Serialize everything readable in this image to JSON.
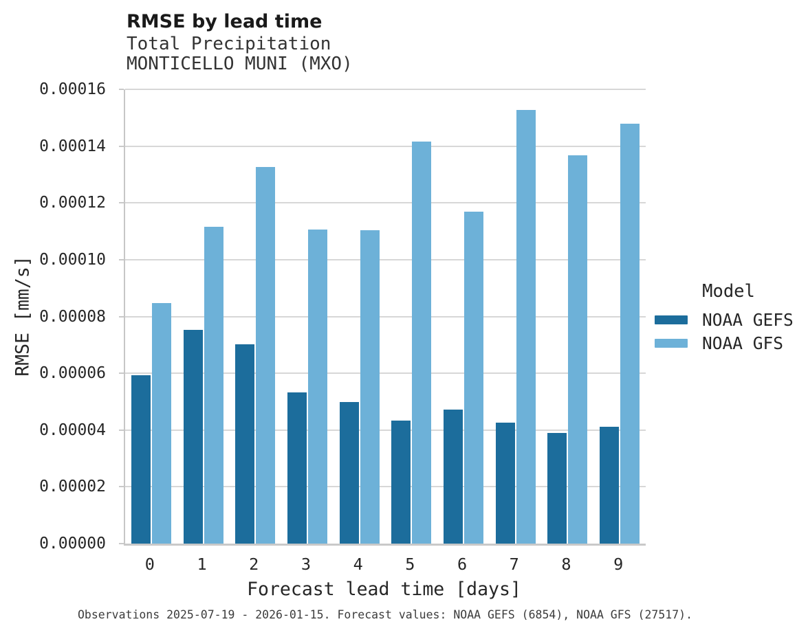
{
  "chart_data": {
    "type": "bar",
    "title": "RMSE by lead time",
    "subtitle_lines": [
      "Total Precipitation",
      "MONTICELLO MUNI (MXO)"
    ],
    "categories": [
      "0",
      "1",
      "2",
      "3",
      "4",
      "5",
      "6",
      "7",
      "8",
      "9"
    ],
    "series": [
      {
        "name": "NOAA GEFS",
        "color": "#1c6d9c",
        "values": [
          5.93e-05,
          7.52e-05,
          7.02e-05,
          5.33e-05,
          4.98e-05,
          4.33e-05,
          4.71e-05,
          4.27e-05,
          3.9e-05,
          4.12e-05
        ]
      },
      {
        "name": "NOAA GFS",
        "color": "#6db1d8",
        "values": [
          8.47e-05,
          0.0001117,
          0.0001327,
          0.0001107,
          0.0001104,
          0.0001416,
          0.000117,
          0.0001528,
          0.0001368,
          0.0001478
        ]
      }
    ],
    "xlabel": "Forecast lead time [days]",
    "ylabel": "RMSE [mm/s]",
    "ylim": [
      0,
      0.00016
    ],
    "ytick_step": 2e-05,
    "ytick_labels": [
      "0.00000",
      "0.00002",
      "0.00004",
      "0.00006",
      "0.00008",
      "0.00010",
      "0.00012",
      "0.00014",
      "0.00016"
    ],
    "grid": true,
    "legend_title": "Model",
    "legend_position": "right-center",
    "caption": "Observations 2025-07-19 - 2026-01-15. Forecast values: NOAA GEFS (6854), NOAA GFS (27517)."
  },
  "style": {
    "background": "#ffffff",
    "gridline_color": "#d7d7d7",
    "axis_color": "#c9c9c9",
    "bar_dark": "#1c6d9c",
    "bar_light": "#6db1d8"
  }
}
